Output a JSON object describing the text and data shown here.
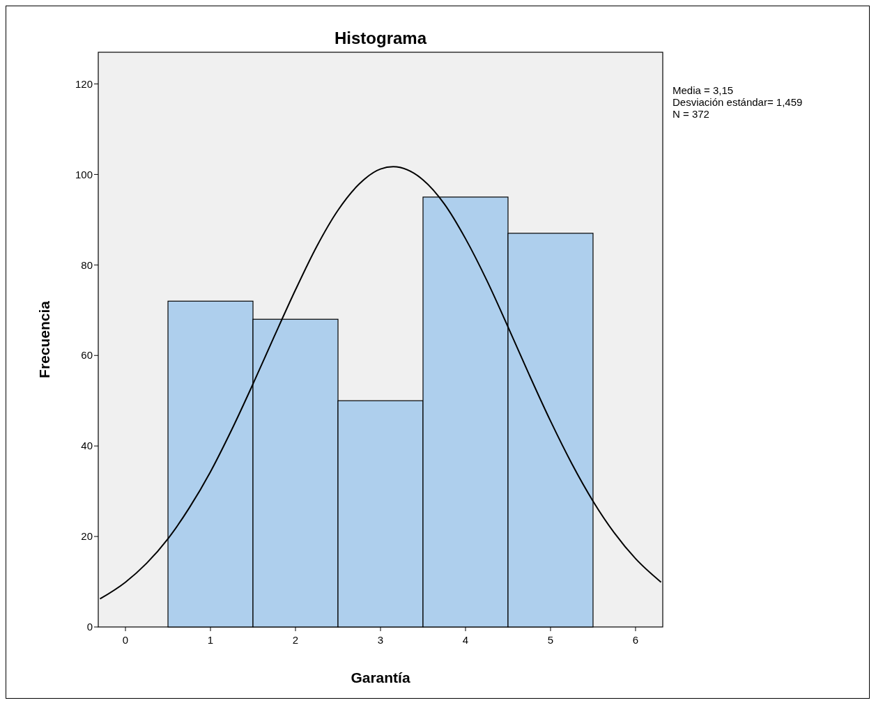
{
  "chart_data": {
    "type": "histogram",
    "title": "Histograma",
    "xlabel": "Garantía",
    "ylabel": "Frecuencia",
    "bins": [
      0.5,
      1.5,
      2.5,
      3.5,
      4.5,
      5.5
    ],
    "values": [
      72,
      68,
      50,
      95,
      87
    ],
    "color": "#aecfed",
    "series": [
      {
        "type": "line",
        "color": "#000000",
        "x": [
          -0.3,
          0,
          0.25,
          0.5,
          0.75,
          1,
          1.25,
          1.5,
          1.75,
          2,
          2.25,
          2.5,
          2.75,
          3,
          3.15,
          3.5,
          3.75,
          4,
          4.25,
          4.5,
          4.75,
          5,
          5.25,
          5.5,
          5.75,
          6,
          6.3
        ],
        "values": [
          6.2,
          9.9,
          14.1,
          19.5,
          26.3,
          34.3,
          43.6,
          53.7,
          64.2,
          74.5,
          84.1,
          92.1,
          97.9,
          101.2,
          101.7,
          98.8,
          93.5,
          85.8,
          76.6,
          66.3,
          55.7,
          45.5,
          36.1,
          27.8,
          20.8,
          15.1,
          9.9
        ]
      }
    ],
    "xlim": [
      -0.32,
      6.32
    ],
    "xticks": [
      0,
      1,
      2,
      3,
      4,
      5,
      6
    ],
    "ylim": [
      0,
      127
    ],
    "yticks": [
      0,
      20,
      40,
      60,
      80,
      100,
      120
    ],
    "annotations": [
      "Media = 3,15",
      "Desviación estándar= 1,459",
      "N = 372"
    ]
  }
}
